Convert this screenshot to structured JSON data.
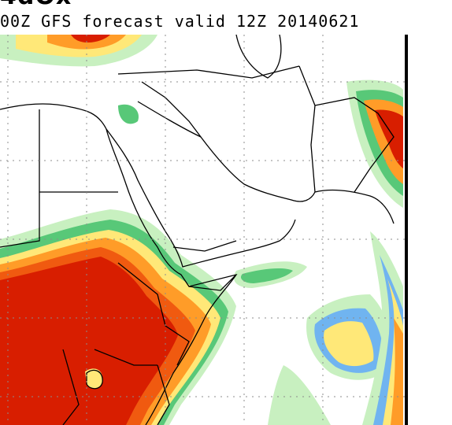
{
  "header": {
    "title_fragment": "4dOx",
    "subtitle": "00Z GFS forecast valid 12Z 20140621"
  },
  "map": {
    "model": "GFS",
    "init": "00Z",
    "valid_time": "12Z 20140621",
    "region": "Middle East and Horn of Africa",
    "colors": {
      "land": "#ffffff",
      "light_green": "#c8f0c0",
      "green": "#58c878",
      "blue": "#70b4f0",
      "yellow": "#ffe878",
      "orange": "#ff9c28",
      "dark_orange": "#f05a10",
      "red": "#d81e00",
      "boundary": "#000000",
      "gridline": "#8c8c8c"
    }
  }
}
